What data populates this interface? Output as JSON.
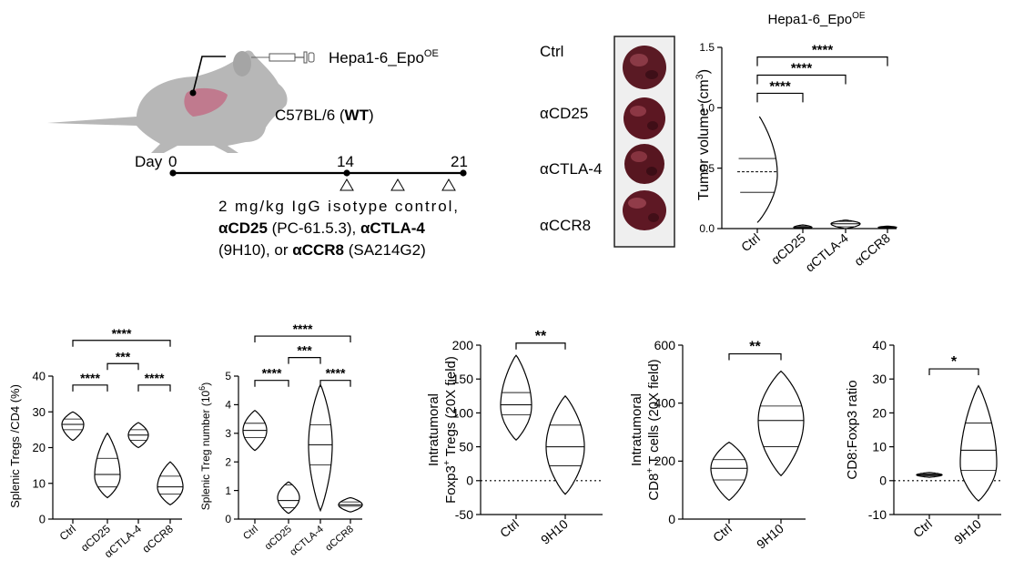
{
  "schematic": {
    "cell_line": "Hepa1-6_Epo",
    "cell_line_sup": "OE",
    "strain": "C57BL/6 (",
    "strain_bold": "WT",
    "strain_end": ")",
    "day_label": "Day",
    "days": [
      "0",
      "14",
      "21"
    ],
    "treatment_line1": "2 mg/kg IgG isotype control,",
    "treatment_line2_a": "αCD25",
    "treatment_line2_b": " (PC-61.5.3), ",
    "treatment_line2_c": "αCTLA-4",
    "treatment_line3_a": "(9H10), or ",
    "treatment_line3_b": "αCCR8",
    "treatment_line3_c": " (SA214G2)"
  },
  "tumor_photo_labels": [
    "Ctrl",
    "αCD25",
    "αCTLA-4",
    "αCCR8"
  ],
  "chart_data": [
    {
      "id": "tumor",
      "type": "violin",
      "title": "Hepa1-6_Epo",
      "title_sup": "OE",
      "ylabel": "Tumor volume (cm",
      "ylabel_sup": "3",
      "ylabel_end": ")",
      "ylim": [
        0,
        1.5
      ],
      "yticks": [
        "0.0",
        "0.5",
        "1.0",
        "1.5"
      ],
      "categories": [
        "Ctrl",
        "αCD25",
        "αCTLA-4",
        "αCCR8"
      ],
      "groups": [
        {
          "min": 0.05,
          "max": 0.95,
          "q1": 0.3,
          "median": 0.47,
          "q3": 0.58,
          "mode": 0.45,
          "dashed": true
        },
        {
          "min": 0.0,
          "max": 0.03,
          "q1": 0.005,
          "median": 0.01,
          "q3": 0.02,
          "mode": 0.01,
          "dashed": false
        },
        {
          "min": 0.0,
          "max": 0.07,
          "q1": 0.015,
          "median": 0.04,
          "q3": 0.06,
          "mode": 0.04,
          "dashed": false
        },
        {
          "min": 0.0,
          "max": 0.02,
          "q1": 0.005,
          "median": 0.01,
          "q3": 0.015,
          "mode": 0.01,
          "dashed": false
        }
      ],
      "significance": [
        {
          "from": 0,
          "to": 1,
          "label": "****",
          "y": 1.12
        },
        {
          "from": 0,
          "to": 2,
          "label": "****",
          "y": 1.27
        },
        {
          "from": 0,
          "to": 3,
          "label": "****",
          "y": 1.42
        }
      ]
    },
    {
      "id": "splenic_pct",
      "type": "violin",
      "ylabel": "Splenic Tregs /CD4 (%)",
      "ylim": [
        0,
        40
      ],
      "yticks": [
        "0",
        "10",
        "20",
        "30",
        "40"
      ],
      "categories": [
        "Ctrl",
        "αCD25",
        "αCTLA-4",
        "αCCR8"
      ],
      "groups": [
        {
          "min": 22,
          "max": 30,
          "q1": 25,
          "median": 26.5,
          "q3": 28,
          "mode": 26.5
        },
        {
          "min": 6,
          "max": 24,
          "q1": 9,
          "median": 12.5,
          "q3": 17,
          "mode": 12
        },
        {
          "min": 20,
          "max": 27,
          "q1": 22,
          "median": 23.5,
          "q3": 25,
          "mode": 23.5
        },
        {
          "min": 4,
          "max": 16,
          "q1": 7,
          "median": 9,
          "q3": 12,
          "mode": 9
        }
      ],
      "significance": [
        {
          "from": 0,
          "to": 1,
          "label": "****",
          "y": 37.5
        },
        {
          "from": 1,
          "to": 2,
          "label": "***",
          "y": 43.5
        },
        {
          "from": 2,
          "to": 3,
          "label": "****",
          "y": 37.5
        },
        {
          "from": 0,
          "to": 3,
          "label": "****",
          "y": 50
        }
      ]
    },
    {
      "id": "splenic_num",
      "type": "violin",
      "ylabel": "Splenic Treg number (10",
      "ylabel_sup": "6",
      "ylabel_end": ")",
      "ylim": [
        0,
        5
      ],
      "yticks": [
        "0",
        "1",
        "2",
        "3",
        "4",
        "5"
      ],
      "categories": [
        "Ctrl",
        "αCD25",
        "αCTLA-4",
        "αCCR8"
      ],
      "groups": [
        {
          "min": 2.4,
          "max": 3.8,
          "q1": 2.85,
          "median": 3.1,
          "q3": 3.35,
          "mode": 3.1
        },
        {
          "min": 0.2,
          "max": 1.3,
          "q1": 0.4,
          "median": 0.65,
          "q3": 1.2,
          "mode": 0.75
        },
        {
          "min": 0.3,
          "max": 4.7,
          "q1": 1.9,
          "median": 2.6,
          "q3": 3.3,
          "mode": 2.6
        },
        {
          "min": 0.25,
          "max": 0.75,
          "q1": 0.45,
          "median": 0.5,
          "q3": 0.6,
          "mode": 0.5
        }
      ],
      "significance": [
        {
          "from": 0,
          "to": 1,
          "label": "****",
          "y": 4.85
        },
        {
          "from": 1,
          "to": 2,
          "label": "***",
          "y": 5.65
        },
        {
          "from": 2,
          "to": 3,
          "label": "****",
          "y": 4.85
        },
        {
          "from": 0,
          "to": 3,
          "label": "****",
          "y": 6.4
        }
      ]
    },
    {
      "id": "foxp3",
      "type": "violin",
      "ylabel_line1": "Intratumoral",
      "ylabel_line2_a": "Foxp3",
      "ylabel_line2_sup": "+",
      "ylabel_line2_b": " Tregs (20X field)",
      "ylim": [
        -50,
        200
      ],
      "yticks": [
        "-50",
        "0",
        "50",
        "100",
        "150",
        "200"
      ],
      "categories": [
        "Ctrl",
        "9H10"
      ],
      "refline": 0,
      "groups": [
        {
          "min": 60,
          "max": 185,
          "q1": 97,
          "median": 112,
          "q3": 130,
          "mode": 110
        },
        {
          "min": -20,
          "max": 125,
          "q1": 22,
          "median": 50,
          "q3": 82,
          "mode": 50
        }
      ],
      "significance": [
        {
          "from": 0,
          "to": 1,
          "label": "**",
          "y": 203
        }
      ]
    },
    {
      "id": "cd8",
      "type": "violin",
      "ylabel_line1": "Intratumoral",
      "ylabel_line2_a": "CD8",
      "ylabel_line2_sup": "+",
      "ylabel_line2_b": " T cells (20X field)",
      "ylim": [
        0,
        600
      ],
      "yticks": [
        "0",
        "200",
        "400",
        "600"
      ],
      "categories": [
        "Ctrl",
        "9H10"
      ],
      "groups": [
        {
          "min": 65,
          "max": 265,
          "q1": 135,
          "median": 175,
          "q3": 205,
          "mode": 175
        },
        {
          "min": 150,
          "max": 510,
          "q1": 250,
          "median": 340,
          "q3": 390,
          "mode": 340
        }
      ],
      "significance": [
        {
          "from": 0,
          "to": 1,
          "label": "**",
          "y": 570
        }
      ]
    },
    {
      "id": "ratio",
      "type": "violin",
      "ylabel": "CD8:Foxp3 ratio",
      "ylim": [
        -10,
        40
      ],
      "yticks": [
        "-10",
        "0",
        "10",
        "20",
        "30",
        "40"
      ],
      "categories": [
        "Ctrl",
        "9H10"
      ],
      "refline": 0,
      "groups": [
        {
          "min": 1.0,
          "max": 2.4,
          "q1": 1.4,
          "median": 1.7,
          "q3": 2.0,
          "mode": 1.7
        },
        {
          "min": -6,
          "max": 28,
          "q1": 3,
          "median": 9,
          "q3": 17,
          "mode": 5
        }
      ],
      "significance": [
        {
          "from": 0,
          "to": 1,
          "label": "*",
          "y": 33
        }
      ]
    }
  ]
}
